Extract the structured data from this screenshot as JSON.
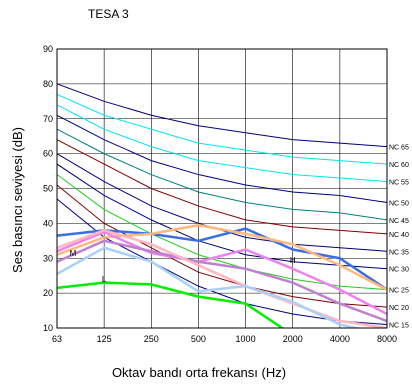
{
  "chart_data": {
    "type": "line",
    "title": "TESA 3",
    "xlabel": "Oktav bandı orta frekansı (Hz)",
    "ylabel": "Ses basıncı seviyesi (dB)",
    "categories": [
      "63",
      "125",
      "250",
      "500",
      "1000",
      "2000",
      "4000",
      "8000"
    ],
    "ylim": [
      10,
      90
    ],
    "yticks": [
      10,
      20,
      30,
      40,
      50,
      60,
      70,
      80,
      90
    ],
    "grid": true,
    "nc_curves": [
      {
        "name": "NC 65",
        "color": "#000080",
        "values": [
          80,
          75,
          71,
          68,
          66,
          64,
          63,
          62
        ]
      },
      {
        "name": "NC 60",
        "color": "#00e5ee",
        "values": [
          77,
          71,
          67,
          63,
          61,
          59,
          58,
          57
        ]
      },
      {
        "name": "NC 55",
        "color": "#00e5ee",
        "values": [
          74,
          67,
          62,
          58,
          56,
          54,
          53,
          52
        ]
      },
      {
        "name": "NC 50",
        "color": "#000080",
        "values": [
          71,
          64,
          58,
          54,
          51,
          49,
          48,
          46
        ]
      },
      {
        "name": "NC 45",
        "color": "#008080",
        "values": [
          67,
          60,
          54,
          49,
          46,
          44,
          43,
          41
        ]
      },
      {
        "name": "NC 40",
        "color": "#800000",
        "values": [
          64,
          57,
          50,
          45,
          41,
          39,
          38,
          37
        ]
      },
      {
        "name": "NC 35",
        "color": "#000080",
        "values": [
          60,
          52,
          45,
          40,
          36,
          34,
          33,
          32
        ]
      },
      {
        "name": "NC 30",
        "color": "#000080",
        "values": [
          57,
          48,
          41,
          35,
          31,
          29,
          28,
          27
        ]
      },
      {
        "name": "NC 25",
        "color": "#22cc22",
        "values": [
          54,
          44,
          37,
          31,
          27,
          24,
          22,
          21
        ]
      },
      {
        "name": "NC 20",
        "color": "#800000",
        "values": [
          51,
          40,
          33,
          26,
          22,
          19,
          17,
          16
        ]
      },
      {
        "name": "NC 15",
        "color": "#000080",
        "values": [
          47,
          36,
          29,
          22,
          17,
          14,
          12,
          11
        ]
      }
    ],
    "series": [
      {
        "color": "#3a6ee8",
        "width": 2.5,
        "values": [
          36.5,
          38,
          37,
          35,
          38.5,
          32.5,
          30,
          21
        ]
      },
      {
        "color": "#ffb87a",
        "width": 2.5,
        "values": [
          31,
          36,
          37,
          39.5,
          37,
          34,
          28,
          21
        ]
      },
      {
        "color": "#ee82ee",
        "width": 2.5,
        "values": [
          32,
          37.5,
          31.5,
          29,
          32.5,
          27,
          21,
          14
        ]
      },
      {
        "color": "#c080d0",
        "width": 2.5,
        "values": [
          29,
          35,
          32,
          29,
          27,
          23,
          17,
          12
        ]
      },
      {
        "color": "#ffb6c1",
        "width": 2.5,
        "values": [
          33,
          38,
          34,
          28,
          22,
          17,
          12,
          10
        ]
      },
      {
        "color": "#a8d0f8",
        "width": 2.5,
        "values": [
          25.5,
          33,
          29,
          20.5,
          22,
          17.5,
          11,
          8
        ]
      },
      {
        "color": "#00ee00",
        "width": 2.5,
        "values": [
          21.5,
          23,
          22.5,
          19,
          17,
          8,
          8,
          8
        ]
      }
    ],
    "annotations": [
      {
        "text": "M",
        "x": "63",
        "y": 31.5
      },
      {
        "text": "L",
        "x": "125",
        "y": 24
      },
      {
        "text": "H",
        "x": "2000",
        "y": 29.5
      }
    ]
  }
}
